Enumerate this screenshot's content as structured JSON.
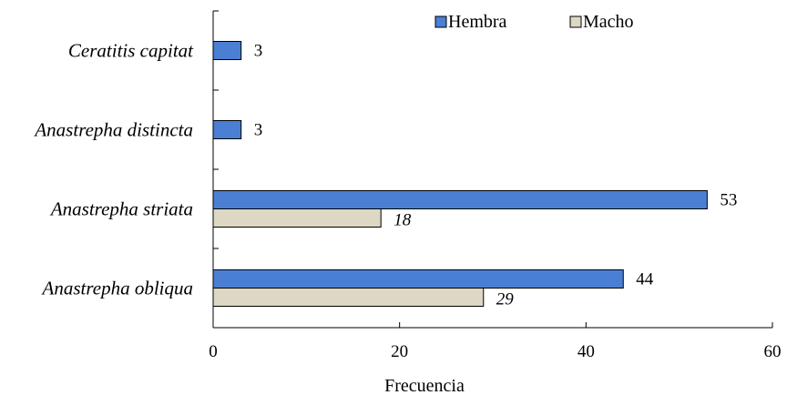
{
  "chart_data": {
    "type": "bar",
    "orientation": "horizontal",
    "categories": [
      "Ceratitis capitat",
      "Anastrepha distincta",
      "Anastrepha striata",
      "Anastrepha obliqua"
    ],
    "series": [
      {
        "name": "Hembra",
        "values": [
          3,
          3,
          53,
          44
        ],
        "color": "#4a7fd4"
      },
      {
        "name": "Macho",
        "values": [
          null,
          null,
          18,
          29
        ],
        "color": "#dcd8c4"
      }
    ],
    "xlabel": "Frecuencia",
    "ylabel": "",
    "xlim": [
      0,
      60
    ],
    "xticks": [
      "0",
      "20",
      "40",
      "60"
    ],
    "grid": false,
    "legend_position": "top-right"
  }
}
